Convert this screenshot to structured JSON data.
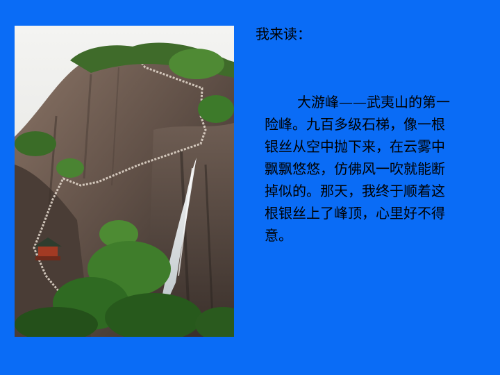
{
  "colors": {
    "background": "#0a6cf6",
    "text": "#000000"
  },
  "photo": {
    "subject": "waterfall-cliff-with-stone-stairway"
  },
  "heading": "我来读：",
  "passage": {
    "lines": [
      "大游峰——武夷山的第一",
      "险峰。九百多级石梯，像一根",
      "银丝从空中抛下来，在云雾中",
      "飘飘悠悠，仿佛风一吹就能断",
      "掉似的。那天，我终于顺着这",
      "根银丝上了峰顶，心里好不得",
      "意。"
    ]
  }
}
